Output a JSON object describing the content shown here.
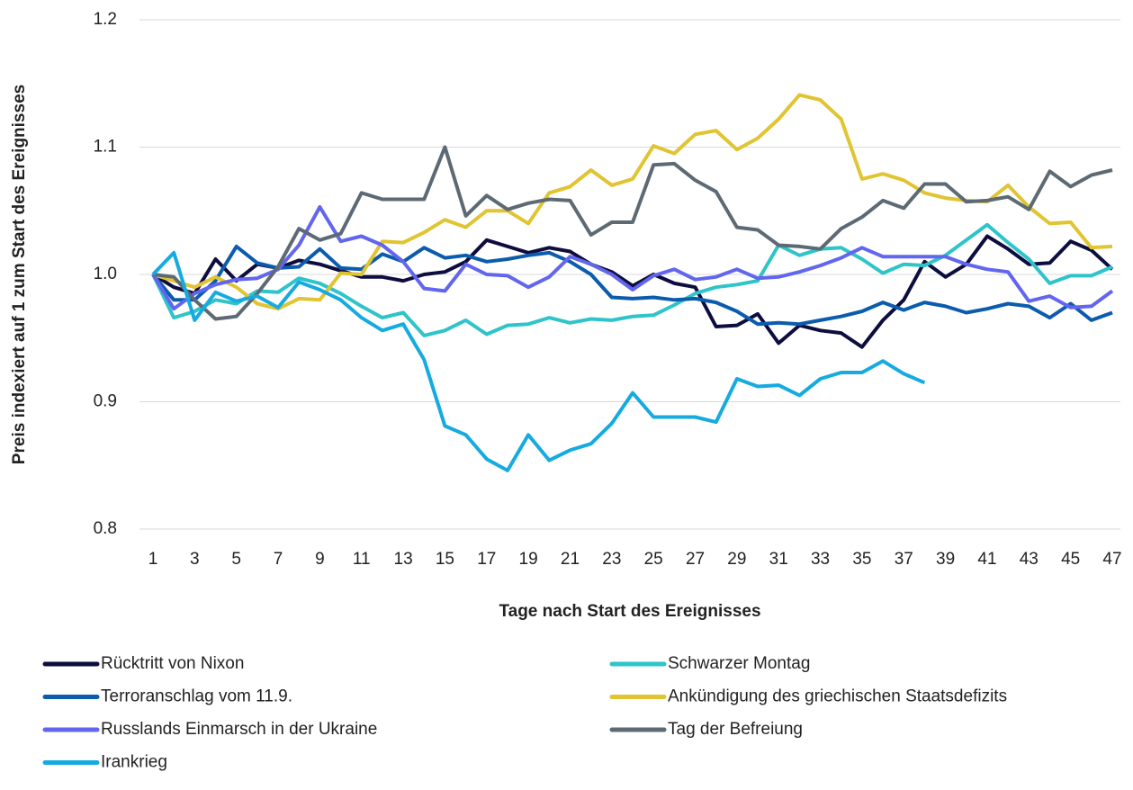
{
  "chart_data": {
    "type": "line",
    "x_label": "Tage nach Start des Ereignisses",
    "y_label": "Preis indexiert auf 1 zum Start des Ereignisses",
    "x": [
      1,
      2,
      3,
      4,
      5,
      6,
      7,
      8,
      9,
      10,
      11,
      12,
      13,
      14,
      15,
      16,
      17,
      18,
      19,
      20,
      21,
      22,
      23,
      24,
      25,
      26,
      27,
      28,
      29,
      30,
      31,
      32,
      33,
      34,
      35,
      36,
      37,
      38,
      39,
      40,
      41,
      42,
      43,
      44,
      45,
      46,
      47
    ],
    "xlim": [
      1,
      47
    ],
    "xticks": [
      1,
      3,
      5,
      7,
      9,
      11,
      13,
      15,
      17,
      19,
      21,
      23,
      25,
      27,
      29,
      31,
      33,
      35,
      37,
      39,
      41,
      43,
      45,
      47
    ],
    "ylim": [
      0.8,
      1.2
    ],
    "yticks": [
      0.8,
      0.9,
      {
        "value": 1,
        "label": "1.0"
      },
      1.1,
      1.2
    ],
    "grid": true,
    "series": [
      {
        "name": "Rücktritt von Nixon",
        "color": "#0d0d3f",
        "values": [
          1.0,
          0.99,
          0.985,
          1.012,
          0.995,
          1.008,
          1.005,
          1.011,
          1.008,
          1.003,
          0.998,
          0.998,
          0.995,
          1.0,
          1.002,
          1.01,
          1.027,
          1.022,
          1.017,
          1.021,
          1.018,
          1.008,
          1.002,
          0.991,
          1.0,
          0.993,
          0.99,
          0.959,
          0.96,
          0.969,
          0.946,
          0.96,
          0.956,
          0.954,
          0.943,
          0.964,
          0.98,
          1.01,
          0.998,
          1.008,
          1.03,
          1.02,
          1.008,
          1.009,
          1.026,
          1.019,
          1.004
        ]
      },
      {
        "name": "Schwarzer Montag",
        "color": "#2ec4c9",
        "values": [
          1.0,
          0.966,
          0.971,
          0.98,
          0.977,
          0.987,
          0.986,
          0.997,
          0.993,
          0.985,
          0.975,
          0.966,
          0.97,
          0.952,
          0.956,
          0.964,
          0.953,
          0.96,
          0.961,
          0.966,
          0.962,
          0.965,
          0.964,
          0.967,
          0.968,
          0.976,
          0.985,
          0.99,
          0.992,
          0.995,
          1.023,
          1.015,
          1.02,
          1.021,
          1.012,
          1.001,
          1.008,
          1.007,
          1.015,
          1.027,
          1.039,
          1.025,
          1.012,
          0.993,
          0.999,
          0.999,
          1.006
        ]
      },
      {
        "name": "Terroranschlag vom 11.9.",
        "color": "#0c5cad",
        "values": [
          1.0,
          0.98,
          0.98,
          0.995,
          1.022,
          1.009,
          1.005,
          1.006,
          1.02,
          1.005,
          1.004,
          1.016,
          1.01,
          1.021,
          1.013,
          1.015,
          1.01,
          1.012,
          1.015,
          1.017,
          1.01,
          1.0,
          0.982,
          0.981,
          0.982,
          0.98,
          0.981,
          0.978,
          0.971,
          0.961,
          0.962,
          0.961,
          0.964,
          0.967,
          0.971,
          0.978,
          0.972,
          0.978,
          0.975,
          0.97,
          0.973,
          0.977,
          0.975,
          0.966,
          0.977,
          0.964,
          0.97
        ]
      },
      {
        "name": "Ankündigung des griechischen Staatsdefizits",
        "color": "#e1c432",
        "values": [
          1.0,
          0.995,
          0.99,
          0.998,
          0.99,
          0.977,
          0.973,
          0.981,
          0.98,
          1.001,
          1.0,
          1.026,
          1.025,
          1.033,
          1.043,
          1.037,
          1.05,
          1.05,
          1.04,
          1.064,
          1.069,
          1.082,
          1.07,
          1.075,
          1.101,
          1.095,
          1.11,
          1.113,
          1.098,
          1.107,
          1.122,
          1.141,
          1.137,
          1.122,
          1.075,
          1.079,
          1.074,
          1.064,
          1.06,
          1.058,
          1.057,
          1.07,
          1.053,
          1.04,
          1.041,
          1.021,
          1.022
        ]
      },
      {
        "name": "Russlands Einmarsch in der Ukraine",
        "color": "#6266ef",
        "values": [
          1.0,
          0.973,
          0.985,
          0.992,
          0.996,
          0.997,
          1.004,
          1.023,
          1.053,
          1.026,
          1.03,
          1.023,
          1.01,
          0.989,
          0.987,
          1.008,
          1.0,
          0.999,
          0.99,
          0.998,
          1.014,
          1.008,
          1.0,
          0.988,
          0.999,
          1.004,
          0.996,
          0.998,
          1.004,
          0.997,
          0.998,
          1.002,
          1.007,
          1.013,
          1.021,
          1.014,
          1.014,
          1.014,
          1.014,
          1.008,
          1.004,
          1.002,
          0.979,
          0.983,
          0.974,
          0.975,
          0.987
        ]
      },
      {
        "name": "Tag der Befreiung",
        "color": "#5d6a74",
        "values": [
          1.0,
          0.998,
          0.98,
          0.965,
          0.967,
          0.985,
          1.006,
          1.036,
          1.027,
          1.032,
          1.064,
          1.059,
          1.059,
          1.059,
          1.1,
          1.046,
          1.062,
          1.051,
          1.056,
          1.059,
          1.058,
          1.031,
          1.041,
          1.041,
          1.086,
          1.087,
          1.074,
          1.065,
          1.037,
          1.035,
          1.023,
          1.022,
          1.02,
          1.036,
          1.045,
          1.058,
          1.052,
          1.071,
          1.071,
          1.057,
          1.058,
          1.061,
          1.051,
          1.081,
          1.069,
          1.078,
          1.082
        ]
      },
      {
        "name": "Irankrieg",
        "color": "#16abe0",
        "values": [
          1.0,
          1.017,
          0.964,
          0.986,
          0.979,
          0.983,
          0.974,
          0.994,
          0.988,
          0.98,
          0.966,
          0.956,
          0.961,
          0.933,
          0.881,
          0.874,
          0.855,
          0.846,
          0.874,
          0.854,
          0.862,
          0.867,
          0.883,
          0.907,
          0.888,
          0.888,
          0.888,
          0.884,
          0.918,
          0.912,
          0.913,
          0.905,
          0.918,
          0.923,
          0.923,
          0.932,
          0.922,
          0.915,
          null,
          null,
          null,
          null,
          null,
          null,
          null,
          null,
          null
        ]
      }
    ]
  }
}
